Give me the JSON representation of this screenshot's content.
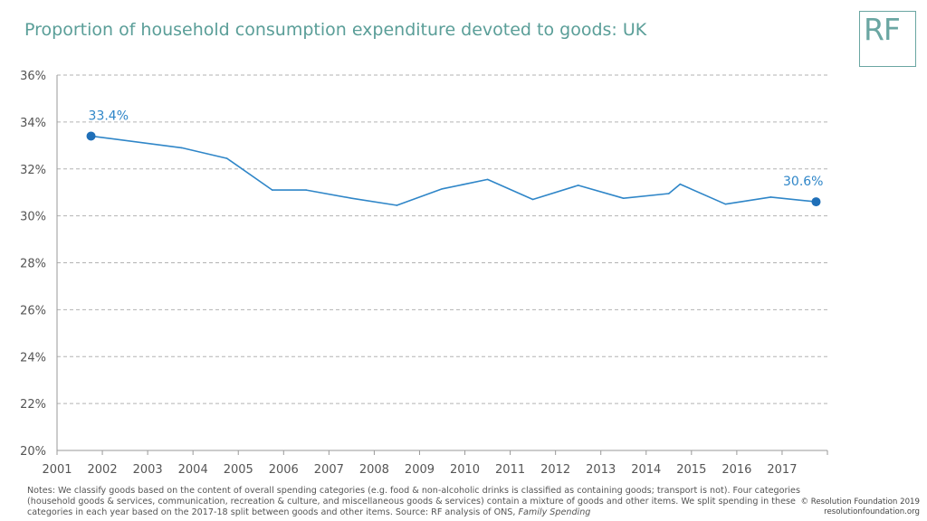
{
  "title": "Proportion of household consumption expenditure devoted to goods: UK",
  "logo_text": "RF",
  "notes": {
    "text": "Notes: We classify goods based on the content of overall spending categories (e.g. food & non-alcoholic drinks is classified as containing goods; transport is not). Four categories (household goods & services, communication, recreation & culture, and miscellaneous goods & services) contain a mixture of goods and other items. We split spending in these categories in each year based on the 2017-18 split between goods and other items. Source: RF analysis of ONS, ",
    "source_italic": "Family Spending"
  },
  "copyright": {
    "line1": "© Resolution Foundation 2019",
    "line2": "resolutionfoundation.org"
  },
  "colors": {
    "title": "#5a9e98",
    "line": "#2f86c8",
    "marker": "#1f6fb8",
    "grid": "#b3b3b3",
    "axis_text": "#555555"
  },
  "chart_data": {
    "type": "line",
    "title": "Proportion of household consumption expenditure devoted to goods: UK",
    "xlabel": "",
    "ylabel": "",
    "xlim": [
      2001,
      2018
    ],
    "ylim": [
      20,
      36
    ],
    "x_ticks": [
      2001,
      2002,
      2003,
      2004,
      2005,
      2006,
      2007,
      2008,
      2009,
      2010,
      2011,
      2012,
      2013,
      2014,
      2015,
      2016,
      2017
    ],
    "y_ticks": [
      20,
      22,
      24,
      26,
      28,
      30,
      32,
      34,
      36
    ],
    "y_tick_labels": [
      "20%",
      "22%",
      "24%",
      "26%",
      "28%",
      "30%",
      "32%",
      "34%",
      "36%"
    ],
    "grid": true,
    "grid_style": "dashed horizontal",
    "series": [
      {
        "x": [
          2001.75,
          2003.75,
          2004.75,
          2005.75,
          2006.5,
          2007.5,
          2008.5,
          2009.5,
          2010.5,
          2011.5,
          2012.5,
          2013.5,
          2014.5,
          2014.75,
          2015.75,
          2016.75,
          2017.75
        ],
        "values": [
          33.4,
          32.9,
          32.45,
          31.1,
          31.1,
          30.75,
          30.45,
          31.15,
          31.55,
          30.7,
          31.3,
          30.75,
          30.95,
          31.35,
          30.5,
          30.8,
          30.6
        ]
      }
    ],
    "annotations": [
      {
        "text": "33.4%",
        "x": 2001.75,
        "y": 33.4
      },
      {
        "text": "30.6%",
        "x": 2017.75,
        "y": 30.6
      }
    ]
  }
}
